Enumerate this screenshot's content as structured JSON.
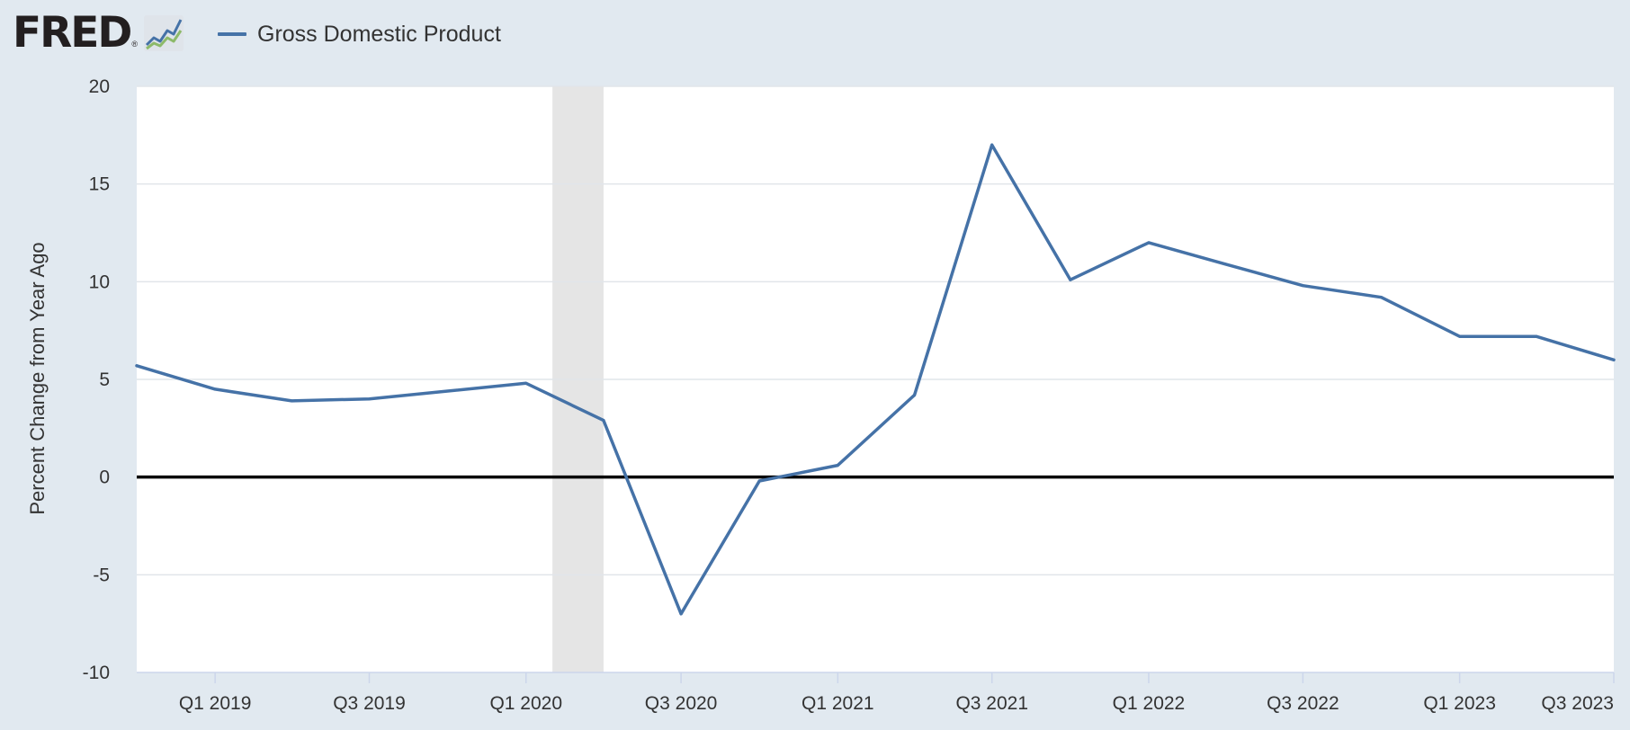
{
  "header": {
    "logo_text": "FRED",
    "logo_mark": "®",
    "logo_icon": "line-graph-icon"
  },
  "legend": {
    "label": "Gross Domestic Product",
    "color": "#4572a7"
  },
  "chart_data": {
    "type": "line",
    "ylabel": "Percent Change from Year Ago",
    "xlabel": "",
    "ylim": [
      -10,
      20
    ],
    "yticks": [
      -10,
      -5,
      0,
      5,
      10,
      15,
      20
    ],
    "xlim": [
      "2018-10-01",
      "2023-07-01"
    ],
    "xticks": [
      {
        "date": "2019-01-01",
        "label": "Q1 2019"
      },
      {
        "date": "2019-07-01",
        "label": "Q3 2019"
      },
      {
        "date": "2020-01-01",
        "label": "Q1 2020"
      },
      {
        "date": "2020-07-01",
        "label": "Q3 2020"
      },
      {
        "date": "2021-01-01",
        "label": "Q1 2021"
      },
      {
        "date": "2021-07-01",
        "label": "Q3 2021"
      },
      {
        "date": "2022-01-01",
        "label": "Q1 2022"
      },
      {
        "date": "2022-07-01",
        "label": "Q3 2022"
      },
      {
        "date": "2023-01-01",
        "label": "Q1 2023"
      },
      {
        "date": "2023-07-01",
        "label": "Q3 2023"
      }
    ],
    "grid": true,
    "zero_line": true,
    "recession_shading": [
      {
        "start": "2020-02-01",
        "end": "2020-04-01",
        "color": "#e5e5e5"
      }
    ],
    "series": [
      {
        "name": "Gross Domestic Product",
        "color": "#4572a7",
        "x": [
          "2018-10-01",
          "2019-01-01",
          "2019-04-01",
          "2019-07-01",
          "2019-10-01",
          "2020-01-01",
          "2020-04-01",
          "2020-07-01",
          "2020-10-01",
          "2021-01-01",
          "2021-04-01",
          "2021-07-01",
          "2021-10-01",
          "2022-01-01",
          "2022-04-01",
          "2022-07-01",
          "2022-10-01",
          "2023-01-01",
          "2023-04-01",
          "2023-07-01"
        ],
        "values": [
          5.7,
          4.5,
          3.9,
          4.0,
          4.4,
          4.8,
          2.9,
          -7.0,
          -0.2,
          0.6,
          4.2,
          17.0,
          10.1,
          12.0,
          10.9,
          9.8,
          9.2,
          7.2,
          7.2,
          6.0
        ]
      }
    ]
  }
}
